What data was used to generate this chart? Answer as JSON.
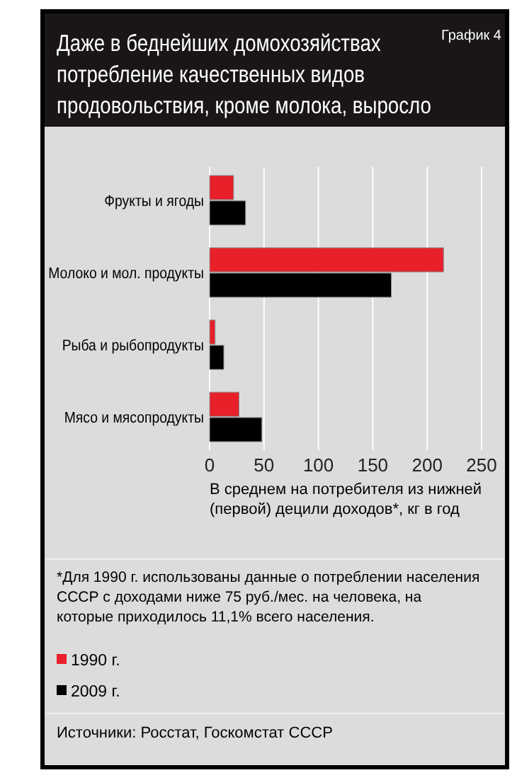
{
  "chart_data": {
    "type": "bar",
    "orientation": "horizontal",
    "title": "Даже в беднейших домохозяйствах потребление качественных видов продовольствия, кроме молока, выросло",
    "subtitle": "График 4",
    "categories": [
      "Фрукты и ягоды",
      "Молоко и мол. продукты",
      "Рыба и рыбопродукты",
      "Мясо и мясопродукты"
    ],
    "series": [
      {
        "name": "1990 г.",
        "color": "#e8202a",
        "values": [
          22,
          215,
          5,
          27
        ]
      },
      {
        "name": "2009 г.",
        "color": "#000000",
        "values": [
          33,
          167,
          13,
          48
        ]
      }
    ],
    "xlim": [
      0,
      250
    ],
    "xticks": [
      0,
      50,
      100,
      150,
      200,
      250
    ],
    "grid": "x",
    "legend": "bottom",
    "xlabel": "В среднем на потребителя из нижней (первой) децили доходов*, кг в год",
    "annotations": [
      "*Для 1990 г. использованы данные о потреблении населения СССР с доходами ниже 75 руб./мес. на человека, на которые приходилось 11,1% всего населения.",
      "Источники: Росстат, Госкомстат СССР"
    ]
  }
}
